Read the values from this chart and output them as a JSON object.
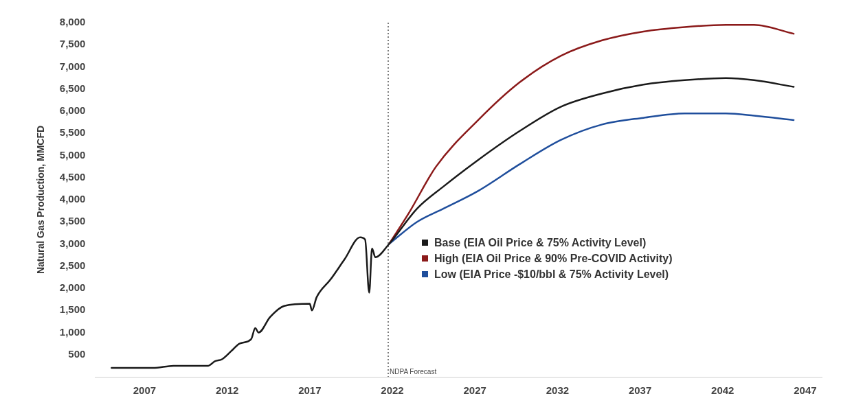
{
  "chart_data": {
    "type": "line",
    "ylabel": "Natural Gas Production, MMCFD",
    "xlim": [
      2004,
      2048
    ],
    "xticks": [
      2007,
      2012,
      2017,
      2022,
      2027,
      2032,
      2037,
      2042,
      2047
    ],
    "ylim": [
      0,
      8000
    ],
    "yticks": [
      {
        "value": 500,
        "label": "500"
      },
      {
        "value": 1000,
        "label": "1,000"
      },
      {
        "value": 1500,
        "label": "1,500"
      },
      {
        "value": 2000,
        "label": "2,000"
      },
      {
        "value": 2500,
        "label": "2,500"
      },
      {
        "value": 3000,
        "label": "3,000"
      },
      {
        "value": 3500,
        "label": "3,500"
      },
      {
        "value": 4000,
        "label": "4,000"
      },
      {
        "value": 4500,
        "label": "4,500"
      },
      {
        "value": 5000,
        "label": "5,000"
      },
      {
        "value": 5500,
        "label": "5,500"
      },
      {
        "value": 6000,
        "label": "6,000"
      },
      {
        "value": 6500,
        "label": "6,500"
      },
      {
        "value": 7000,
        "label": "7,000"
      },
      {
        "value": 7500,
        "label": "7,500"
      },
      {
        "value": 8000,
        "label": "8,000"
      }
    ],
    "grid": false,
    "legend": "center",
    "marker": "none",
    "line_style": "solid",
    "ref_lines": [
      {
        "axis": "x",
        "value": 2021.75,
        "label": "NDPA Forecast",
        "color": "#555555",
        "line_style": "dotted"
      }
    ],
    "series": [
      {
        "name": "Base (EIA Oil Price & 75% Activity Level)",
        "color": "#1a1a1a",
        "x": [
          2005.0,
          2006.25,
          2007.5,
          2008.75,
          2010.0,
          2010.85,
          2011.25,
          2011.7,
          2012.3,
          2012.75,
          2013.45,
          2013.7,
          2013.9,
          2014.6,
          2015.45,
          2017.0,
          2017.13,
          2017.42,
          2018.26,
          2019.1,
          2020.05,
          2020.35,
          2020.6,
          2020.77,
          2020.97,
          2021.8,
          2023.5,
          2025.1,
          2027.2,
          2029.7,
          2032.2,
          2034.7,
          2037.2,
          2039.7,
          2042.2,
          2043.9,
          2046.3
        ],
        "values": [
          200,
          200,
          200,
          250,
          250,
          250,
          350,
          400,
          600,
          750,
          850,
          1100,
          1000,
          1350,
          1600,
          1650,
          1500,
          1800,
          2200,
          2650,
          3150,
          3100,
          1900,
          2900,
          2700,
          3000,
          3800,
          4300,
          4900,
          5550,
          6100,
          6400,
          6600,
          6700,
          6750,
          6700,
          6550
        ]
      },
      {
        "name": "High (EIA Oil Price & 90% Pre-COVID Activity)",
        "color": "#8b1a1a",
        "x": [
          2021.8,
          2023.0,
          2024.65,
          2027.2,
          2029.7,
          2032.2,
          2034.7,
          2037.2,
          2039.7,
          2042.2,
          2043.9,
          2046.3
        ],
        "values": [
          3000,
          3700,
          4750,
          5800,
          6650,
          7250,
          7600,
          7800,
          7900,
          7950,
          7950,
          7750
        ]
      },
      {
        "name": "Low (EIA Price -$10/bbl & 75% Activity Level)",
        "color": "#1f4e9c",
        "x": [
          2021.8,
          2023.5,
          2025.1,
          2027.2,
          2029.7,
          2032.2,
          2034.7,
          2037.2,
          2039.7,
          2042.2,
          2043.9,
          2046.3
        ],
        "values": [
          3000,
          3500,
          3800,
          4200,
          4800,
          5350,
          5700,
          5850,
          5950,
          5950,
          5900,
          5800
        ]
      }
    ]
  }
}
